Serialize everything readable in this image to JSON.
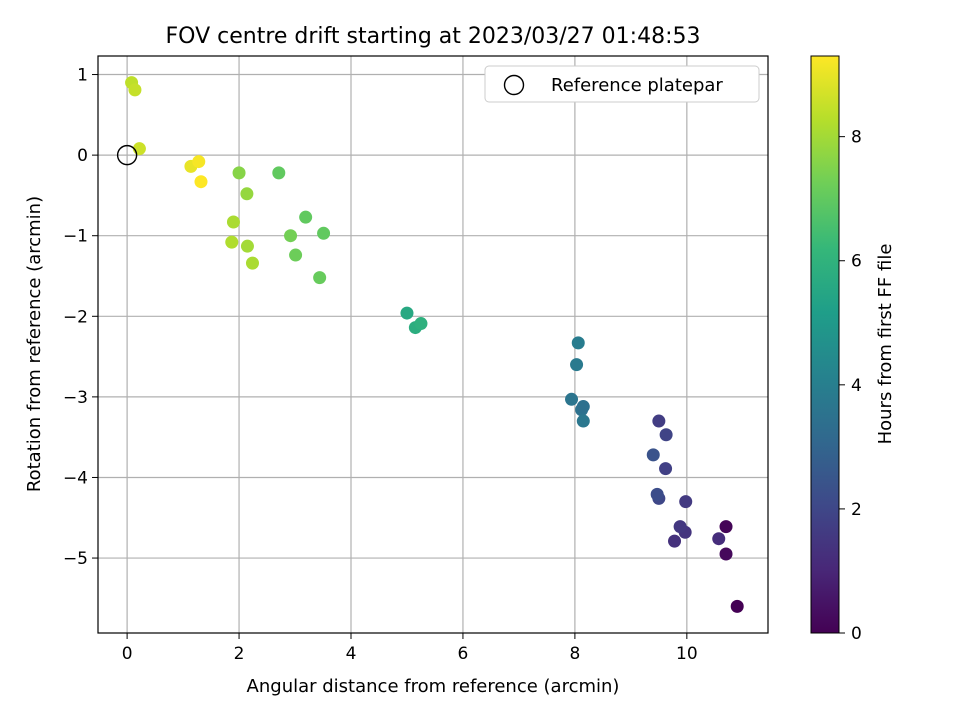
{
  "chart_data": {
    "type": "scatter",
    "title": "FOV centre drift starting at 2023/03/27 01:48:53",
    "xlabel": "Angular distance from reference (arcmin)",
    "ylabel": "Rotation from reference (arcmin)",
    "xlim": [
      -0.52,
      11.45
    ],
    "ylim": [
      -5.93,
      1.23
    ],
    "xticks": [
      0,
      2,
      4,
      6,
      8,
      10
    ],
    "xtick_labels": [
      "0",
      "2",
      "4",
      "6",
      "8",
      "10"
    ],
    "yticks": [
      1,
      0,
      -1,
      -2,
      -3,
      -4,
      -5
    ],
    "ytick_labels": [
      "1",
      "0",
      "−1",
      "−2",
      "−3",
      "−4",
      "−5"
    ],
    "grid": true,
    "legend": {
      "placement": "top-right",
      "entries": [
        "Reference platepar"
      ]
    },
    "reference_point": {
      "x": 0,
      "y": 0,
      "marker": "open-circle"
    },
    "colorbar": {
      "label": "Hours from first FF file",
      "range": [
        0,
        9.3
      ],
      "ticks": [
        0,
        2,
        4,
        6,
        8
      ],
      "tick_labels": [
        "0",
        "2",
        "4",
        "6",
        "8"
      ],
      "colormap": "viridis",
      "colormap_stops": [
        "#440154",
        "#482878",
        "#3e4989",
        "#31688e",
        "#26828e",
        "#1f9e89",
        "#35b779",
        "#6ece58",
        "#b5de2b",
        "#fde725"
      ]
    },
    "points": [
      {
        "x": 10.9,
        "y": -5.6,
        "c": 0.0
      },
      {
        "x": 10.7,
        "y": -4.61,
        "c": 0.1
      },
      {
        "x": 10.7,
        "y": -4.95,
        "c": 0.2
      },
      {
        "x": 10.57,
        "y": -4.76,
        "c": 1.2
      },
      {
        "x": 9.78,
        "y": -4.79,
        "c": 1.3
      },
      {
        "x": 9.97,
        "y": -4.68,
        "c": 1.4
      },
      {
        "x": 9.88,
        "y": -4.61,
        "c": 1.5
      },
      {
        "x": 9.98,
        "y": -4.3,
        "c": 1.6
      },
      {
        "x": 9.62,
        "y": -3.89,
        "c": 1.8
      },
      {
        "x": 9.5,
        "y": -4.26,
        "c": 2.0
      },
      {
        "x": 9.47,
        "y": -4.21,
        "c": 2.2
      },
      {
        "x": 9.5,
        "y": -3.3,
        "c": 1.7
      },
      {
        "x": 9.63,
        "y": -3.47,
        "c": 1.9
      },
      {
        "x": 9.4,
        "y": -3.72,
        "c": 2.4
      },
      {
        "x": 8.03,
        "y": -2.6,
        "c": 3.8
      },
      {
        "x": 8.06,
        "y": -2.33,
        "c": 3.9
      },
      {
        "x": 7.94,
        "y": -3.03,
        "c": 3.6
      },
      {
        "x": 8.12,
        "y": -3.16,
        "c": 3.5
      },
      {
        "x": 8.15,
        "y": -3.12,
        "c": 3.4
      },
      {
        "x": 8.15,
        "y": -3.3,
        "c": 3.7
      },
      {
        "x": 5.0,
        "y": -1.96,
        "c": 5.6
      },
      {
        "x": 5.15,
        "y": -2.14,
        "c": 5.8
      },
      {
        "x": 5.25,
        "y": -2.09,
        "c": 5.9
      },
      {
        "x": 3.44,
        "y": -1.52,
        "c": 7.1
      },
      {
        "x": 3.01,
        "y": -1.24,
        "c": 7.2
      },
      {
        "x": 2.92,
        "y": -1.0,
        "c": 7.3
      },
      {
        "x": 3.51,
        "y": -0.97,
        "c": 7.0
      },
      {
        "x": 3.19,
        "y": -0.77,
        "c": 7.0
      },
      {
        "x": 2.71,
        "y": -0.22,
        "c": 7.0
      },
      {
        "x": 2.0,
        "y": -0.22,
        "c": 7.6
      },
      {
        "x": 2.14,
        "y": -0.48,
        "c": 7.8
      },
      {
        "x": 1.9,
        "y": -0.83,
        "c": 8.1
      },
      {
        "x": 1.87,
        "y": -1.08,
        "c": 8.2
      },
      {
        "x": 2.15,
        "y": -1.13,
        "c": 8.0
      },
      {
        "x": 2.24,
        "y": -1.34,
        "c": 8.1
      },
      {
        "x": 1.14,
        "y": -0.14,
        "c": 9.0
      },
      {
        "x": 1.28,
        "y": -0.08,
        "c": 9.2
      },
      {
        "x": 1.32,
        "y": -0.33,
        "c": 9.3
      },
      {
        "x": 0.22,
        "y": 0.08,
        "c": 8.6
      },
      {
        "x": 0.08,
        "y": 0.9,
        "c": 8.4
      },
      {
        "x": 0.14,
        "y": 0.81,
        "c": 8.5
      }
    ]
  }
}
